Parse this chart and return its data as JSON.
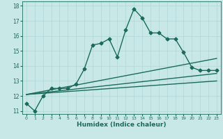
{
  "xlabel": "Humidex (Indice chaleur)",
  "xlim": [
    -0.5,
    23.5
  ],
  "ylim": [
    10.8,
    18.3
  ],
  "yticks": [
    11,
    12,
    13,
    14,
    15,
    16,
    17,
    18
  ],
  "xticks": [
    0,
    1,
    2,
    3,
    4,
    5,
    6,
    7,
    8,
    9,
    10,
    11,
    12,
    13,
    14,
    15,
    16,
    17,
    18,
    19,
    20,
    21,
    22,
    23
  ],
  "background_color": "#c8e8e8",
  "grid_color": "#b0d4d4",
  "line_color": "#1a6b5a",
  "lines": [
    {
      "x": [
        0,
        1,
        2,
        3,
        4,
        5,
        6,
        7,
        8,
        9,
        10,
        11,
        12,
        13,
        14,
        15,
        16,
        17,
        18,
        19,
        20,
        21,
        22,
        23
      ],
      "y": [
        11.5,
        11.0,
        12.0,
        12.5,
        12.5,
        12.5,
        12.8,
        13.8,
        15.4,
        15.5,
        15.8,
        14.6,
        16.4,
        17.8,
        17.2,
        16.2,
        16.2,
        15.8,
        15.8,
        14.9,
        13.9,
        13.7,
        13.7,
        13.7
      ],
      "marker": "D",
      "markersize": 2.5,
      "linewidth": 1.0,
      "has_markers": true
    },
    {
      "x": [
        0,
        23
      ],
      "y": [
        12.1,
        14.5
      ],
      "linewidth": 1.0,
      "has_markers": false
    },
    {
      "x": [
        0,
        23
      ],
      "y": [
        12.1,
        13.5
      ],
      "linewidth": 1.0,
      "has_markers": false
    },
    {
      "x": [
        0,
        23
      ],
      "y": [
        12.1,
        13.0
      ],
      "linewidth": 1.0,
      "has_markers": false
    }
  ]
}
